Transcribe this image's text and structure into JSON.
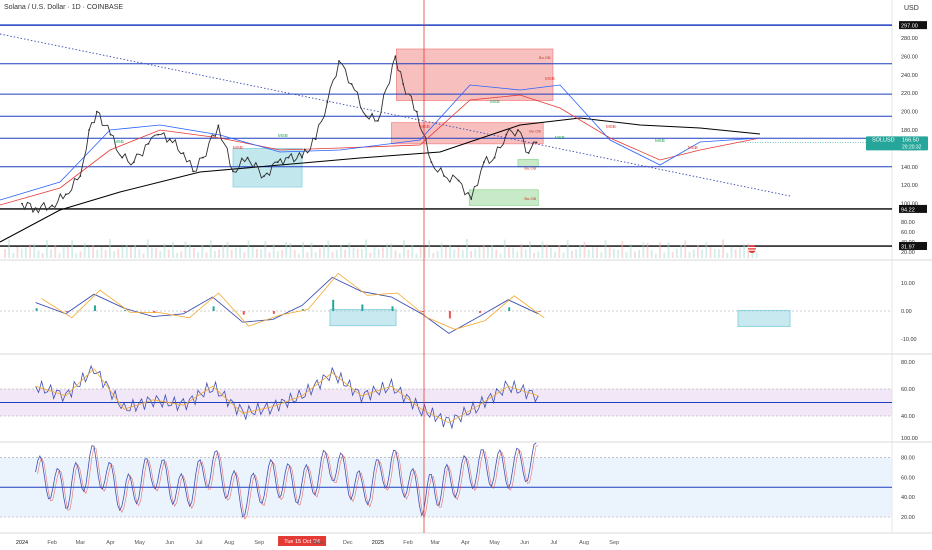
{
  "header": {
    "title": "Solana / U.S. Dollar · 1D · COINBASE",
    "currency": "USD"
  },
  "colors": {
    "price_line": "#2f2f2f",
    "ema_red": "#e53935",
    "ema_blue": "#2962ff",
    "ma_black": "#000000",
    "hline_blue": "#1e3fbf",
    "trend_dotted": "#3b4db3",
    "red_zone": "#f28b8b",
    "cyan_zone": "#8fd3df",
    "green_zone": "#9ad99a",
    "macd_line": "#3f51b5",
    "signal_line": "#f2a92b",
    "hist_green": "#26a69a",
    "hist_red": "#ef5350",
    "rsi_band": "#ead7f0",
    "stoch_band": "#e3f0fb",
    "cursor_line": "#e53935",
    "price_tag": "#26a69a"
  },
  "chart_data": [
    {
      "type": "line",
      "title": "Solana / U.S. Dollar · 1D · COINBASE",
      "x_ticks": [
        "2024",
        "Feb",
        "Mar",
        "Apr",
        "May",
        "Jun",
        "Jul",
        "Aug",
        "Sep",
        "Tue 15 Oct '24",
        "Nov",
        "Dec",
        "2025",
        "Feb",
        "Mar",
        "Apr",
        "May",
        "Jun",
        "Jul",
        "Aug",
        "Sep"
      ],
      "y_ticks": [
        "280.00",
        "260.00",
        "240.00",
        "220.00",
        "200.00",
        "180.00",
        "160.00",
        "140.00",
        "120.00",
        "100.00",
        "80.00",
        "60.00",
        "40.00",
        "20.00"
      ],
      "price_labels": [
        "297.00",
        "94.22",
        "31.97"
      ],
      "last_price": {
        "symbol": "SOLUSD",
        "price": "166.50",
        "countdown": "20:20:32"
      },
      "horizontal_levels": [
        294,
        252,
        219,
        195,
        171,
        140,
        94.22,
        31.97
      ],
      "zones": [
        {
          "kind": "supply",
          "from": "2025-01-20",
          "to": "2025-06-30",
          "low": 212,
          "high": 268,
          "label": "Bu.OB"
        },
        {
          "kind": "supply",
          "from": "2025-01-15",
          "to": "2025-06-20",
          "low": 165,
          "high": 188,
          "label": "Bu.OB"
        },
        {
          "kind": "demand",
          "from": "2024-08-05",
          "to": "2024-10-15",
          "low": 118,
          "high": 160,
          "label": ""
        },
        {
          "kind": "demand",
          "from": "2025-04-05",
          "to": "2025-06-15",
          "low": 98,
          "high": 115,
          "label": "Bu.OB"
        },
        {
          "kind": "demand",
          "from": "2025-05-25",
          "to": "2025-06-15",
          "low": 140,
          "high": 148,
          "label": "Bu.OB"
        }
      ],
      "annotations": [
        "MSB",
        "MSB",
        "MSB",
        "MSB",
        "MSB",
        "MSB",
        "MSB",
        "MSB",
        "MSB",
        "MSB"
      ],
      "series": [
        {
          "name": "",
          "x": [
            "2024-01-01",
            "2024-01-15",
            "2024-02-01",
            "2024-02-15",
            "2024-03-01",
            "2024-03-10",
            "2024-03-18",
            "2024-04-01",
            "2024-04-13",
            "2024-04-25",
            "2024-05-10",
            "2024-05-20",
            "2024-06-01",
            "2024-06-15",
            "2024-06-25",
            "2024-07-05",
            "2024-07-21",
            "2024-08-05",
            "2024-08-20",
            "2024-09-06",
            "2024-09-20",
            "2024-10-01",
            "2024-10-15",
            "2024-10-29",
            "2024-11-10",
            "2024-11-22",
            "2024-12-05",
            "2024-12-20",
            "2025-01-01",
            "2025-01-19",
            "2025-01-27",
            "2025-02-10",
            "2025-02-25",
            "2025-03-10",
            "2025-03-25",
            "2025-04-07",
            "2025-04-20",
            "2025-05-01",
            "2025-05-13",
            "2025-05-25",
            "2025-06-05",
            "2025-06-13"
          ],
          "y": [
            100,
            95,
            98,
            110,
            130,
            180,
            200,
            175,
            150,
            145,
            165,
            175,
            170,
            155,
            135,
            150,
            185,
            135,
            150,
            130,
            145,
            150,
            150,
            170,
            210,
            255,
            230,
            195,
            190,
            260,
            230,
            200,
            145,
            130,
            125,
            105,
            145,
            150,
            175,
            180,
            155,
            166.5
          ]
        }
      ]
    },
    {
      "type": "bar",
      "title": "",
      "y_ticks": [
        "10.00",
        "0.00",
        "-10.00"
      ],
      "series": [
        {
          "name": "",
          "x": [
            "2024-01",
            "2024-02",
            "2024-03",
            "2024-04",
            "2024-05",
            "2024-06",
            "2024-07",
            "2024-08",
            "2024-09",
            "2024-10",
            "2024-11",
            "2024-12",
            "2025-01",
            "2025-02",
            "2025-03",
            "2025-04",
            "2025-05",
            "2025-06"
          ],
          "values": [
            3,
            -1,
            6,
            1,
            -2,
            -1,
            5,
            -4,
            -3,
            2,
            12,
            7,
            5,
            -1,
            -8,
            -2,
            4,
            -1
          ]
        }
      ]
    },
    {
      "type": "line",
      "title": "",
      "y_ticks": [
        "80.00",
        "60.00",
        "40.00"
      ],
      "band": [
        40,
        60
      ],
      "series": [
        {
          "name": "",
          "x": [
            "2024-01",
            "2024-02",
            "2024-03",
            "2024-04",
            "2024-05",
            "2024-06",
            "2024-07",
            "2024-08",
            "2024-09",
            "2024-10",
            "2024-11",
            "2024-12",
            "2025-01",
            "2025-02",
            "2025-03",
            "2025-04",
            "2025-05",
            "2025-06"
          ],
          "values": [
            62,
            55,
            75,
            45,
            52,
            48,
            62,
            42,
            47,
            55,
            72,
            55,
            62,
            45,
            35,
            48,
            62,
            55
          ]
        }
      ]
    },
    {
      "type": "line",
      "title": "",
      "y_ticks": [
        "100.00",
        "80.00",
        "60.00",
        "40.00",
        "20.00"
      ],
      "band": [
        20,
        80
      ],
      "series": [
        {
          "name": "",
          "x": [
            "2024-01",
            "2024-02",
            "2024-03",
            "2024-04",
            "2024-05",
            "2024-06",
            "2024-07",
            "2024-08",
            "2024-09",
            "2024-10",
            "2024-11",
            "2024-12",
            "2025-01",
            "2025-02",
            "2025-03",
            "2025-04",
            "2025-05",
            "2025-06"
          ],
          "values": [
            70,
            30,
            90,
            20,
            75,
            25,
            85,
            15,
            60,
            40,
            90,
            30,
            85,
            20,
            50,
            80,
            75,
            95
          ]
        }
      ]
    }
  ]
}
